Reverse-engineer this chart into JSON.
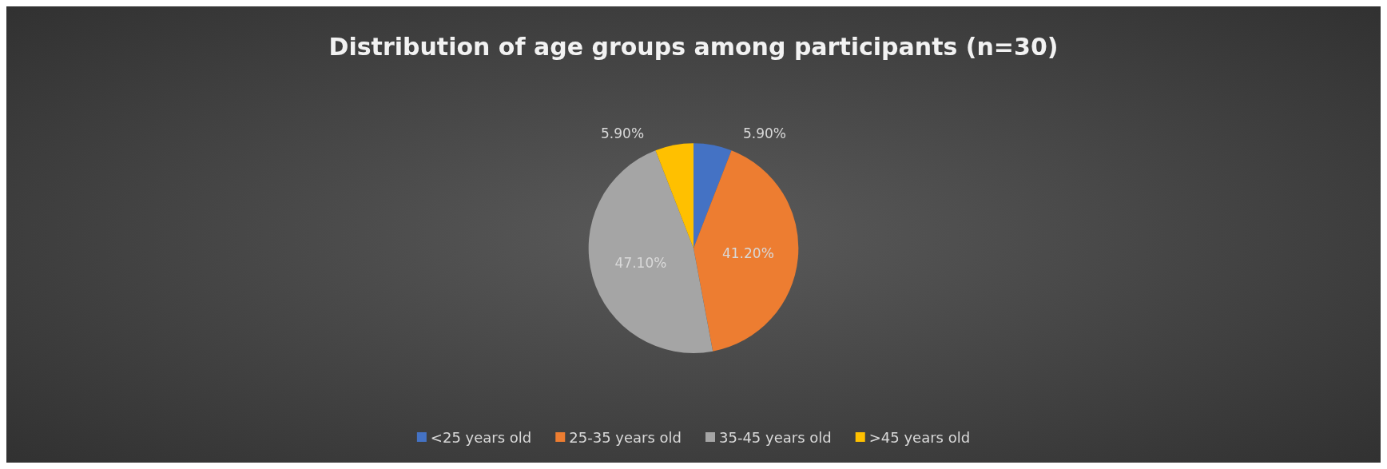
{
  "chart_data": {
    "type": "pie",
    "title": "Distribution of age groups among participants (n=30)",
    "categories": [
      "<25 years old",
      "25-35 years old",
      "35-45 years old",
      ">45 years old"
    ],
    "values": [
      5.9,
      41.2,
      47.1,
      5.9
    ],
    "value_labels": [
      "5.90%",
      "41.20%",
      "47.10%",
      "5.90%"
    ],
    "colors": [
      "#4472c4",
      "#ed7d31",
      "#a5a5a5",
      "#ffc000"
    ],
    "legend": "bottom"
  }
}
